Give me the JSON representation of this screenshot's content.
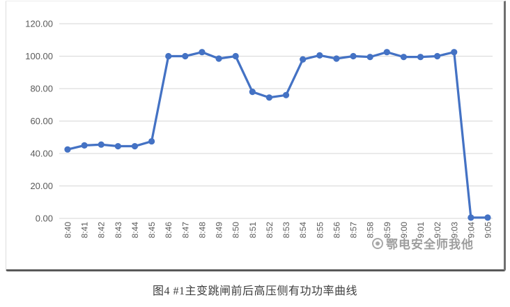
{
  "page": {
    "caption": "图4  #1主变跳闸前后高压侧有功功率曲线",
    "watermark": "鄂电安全师我他"
  },
  "chart_data": {
    "type": "line",
    "title": "",
    "xlabel": "",
    "ylabel": "",
    "x": [
      "8:40",
      "8:41",
      "8:42",
      "8:43",
      "8:44",
      "8:45",
      "8:46",
      "8:47",
      "8:48",
      "8:49",
      "8:50",
      "8:51",
      "8:52",
      "8:53",
      "8:54",
      "8:55",
      "8:56",
      "8:57",
      "8:58",
      "8:59",
      "9:00",
      "9:01",
      "9:02",
      "9:03",
      "9:04",
      "9:05"
    ],
    "values": [
      42.5,
      45,
      45.5,
      44.5,
      44.5,
      47.5,
      100,
      100,
      102.5,
      98.5,
      100,
      78,
      74.5,
      76,
      98,
      100.5,
      98.5,
      100,
      99.5,
      102.5,
      99.5,
      99.5,
      100,
      102.5,
      0.5,
      0.5
    ],
    "ylim": [
      0,
      120
    ],
    "ytick_step": 20,
    "ytick_labels": [
      "0.00",
      "20.00",
      "40.00",
      "60.00",
      "80.00",
      "100.00",
      "120.00"
    ],
    "grid": true,
    "legend": false,
    "marker": "circle",
    "colors": {
      "line": "#4472C4",
      "gridline": "#d6d6d6",
      "tick_label": "#595959"
    }
  }
}
